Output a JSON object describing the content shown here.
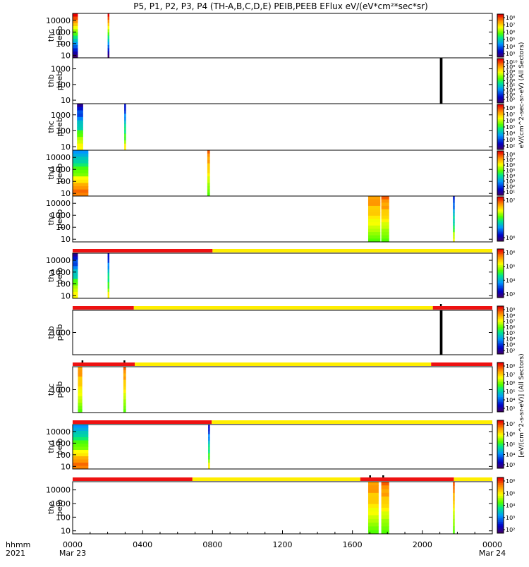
{
  "title": "P5, P1, P2, P3, P4 (TH-A,B,C,D,E) PEIB,PEEB EFlux eV/(eV*cm²*sec*sr)",
  "colorbar_label_top": "eV/(cm^2-sec-sr-eV) (All Sectors)",
  "colorbar_label_bottom": "[eV/(cm^2-s-sr-eV)] (All Sectors)",
  "x_axis": {
    "corner_label_1": "hhmm",
    "corner_label_2": "2021",
    "ticks": [
      {
        "hour": 0,
        "label": "0000",
        "sublabel": "Mar 23"
      },
      {
        "hour": 4,
        "label": "0400",
        "sublabel": ""
      },
      {
        "hour": 8,
        "label": "0800",
        "sublabel": ""
      },
      {
        "hour": 12,
        "label": "1200",
        "sublabel": ""
      },
      {
        "hour": 16,
        "label": "1600",
        "sublabel": ""
      },
      {
        "hour": 20,
        "label": "2000",
        "sublabel": ""
      },
      {
        "hour": 24,
        "label": "0000",
        "sublabel": "Mar 24"
      }
    ]
  },
  "chart_data": {
    "type": "heatmap",
    "title": "P5, P1, P2, P3, P4 (TH-A,B,C,D,E) PEIB,PEEB EFlux eV/(eV*cm²*sec*sr)",
    "x_range_hours": [
      0,
      24
    ],
    "x_start": "2021-03-23 00:00",
    "x_end": "2021-03-24 00:00",
    "y_scale": "log",
    "panels": [
      {
        "ylabel": [
          "thc",
          "peeb"
        ],
        "yticks": [
          "10000",
          "1000",
          "100",
          "10"
        ],
        "yrange": [
          6,
          40000
        ],
        "cbar_ticks": [
          "10⁸",
          "10⁷",
          "10⁶",
          "10⁵",
          "10⁴",
          "10³"
        ],
        "cbar_range_exp": [
          2,
          8.5
        ],
        "mode_bar": null,
        "marker_ticks": [],
        "segments": [
          {
            "t0": 0.0,
            "t1": 0.3,
            "style": "rainbow"
          },
          {
            "t0": 2.0,
            "t1": 2.1,
            "style": "rainbow"
          }
        ]
      },
      {
        "ylabel": [
          "thb",
          "peeb"
        ],
        "yticks": [
          "1000",
          "100",
          "10"
        ],
        "yrange": [
          6,
          5000
        ],
        "cbar_ticks": [
          "10¹⁰",
          "10⁹",
          "10⁸",
          "10⁷",
          "10⁶",
          "10⁵",
          "10⁴",
          "10³",
          "10²"
        ],
        "cbar_range_exp": [
          1.5,
          10.5
        ],
        "mode_bar": null,
        "marker_ticks": [],
        "segments": [
          {
            "t0": 21.0,
            "t1": 21.15,
            "style": "black"
          }
        ]
      },
      {
        "ylabel": [
          "thc",
          "peeb"
        ],
        "yticks": [
          "1000",
          "100",
          "10"
        ],
        "yrange": [
          6,
          5000
        ],
        "cbar_ticks": [
          "10⁸",
          "10⁷",
          "10⁶",
          "10⁵",
          "10⁴",
          "10³",
          "10²"
        ],
        "cbar_range_exp": [
          1.5,
          8.5
        ],
        "mode_bar": null,
        "marker_ticks": [],
        "segments": [
          {
            "t0": 0.25,
            "t1": 0.6,
            "style": "cool"
          },
          {
            "t0": 2.95,
            "t1": 3.05,
            "style": "cool"
          }
        ]
      },
      {
        "ylabel": [
          "thd",
          "peeb"
        ],
        "yticks": [
          "10000",
          "1000",
          "100",
          "10"
        ],
        "yrange": [
          6,
          40000
        ],
        "cbar_ticks": [
          "10⁸",
          "10⁷",
          "10⁶",
          "10⁵",
          "10⁴",
          "10³",
          "10²",
          "10¹"
        ],
        "cbar_range_exp": [
          0.5,
          8.5
        ],
        "mode_bar": null,
        "marker_ticks": [],
        "segments": [
          {
            "t0": 0.0,
            "t1": 0.9,
            "style": "mixed"
          },
          {
            "t0": 7.7,
            "t1": 7.85,
            "style": "warm"
          }
        ]
      },
      {
        "ylabel": [
          "the",
          "peeb"
        ],
        "yticks": [
          "10000",
          "1000",
          "100",
          "10"
        ],
        "yrange": [
          6,
          40000
        ],
        "cbar_ticks": [
          "10⁷",
          "10⁶"
        ],
        "cbar_range_exp": [
          5,
          8
        ],
        "mode_bar": null,
        "marker_ticks": [],
        "segments": [
          {
            "t0": 16.9,
            "t1": 17.6,
            "style": "warm"
          },
          {
            "t0": 17.65,
            "t1": 18.1,
            "style": "warm"
          },
          {
            "t0": 21.75,
            "t1": 21.85,
            "style": "cool"
          }
        ]
      },
      {
        "ylabel": [
          "tha",
          "peib"
        ],
        "yticks": [
          "10000",
          "1000",
          "100",
          "10"
        ],
        "yrange": [
          6,
          40000
        ],
        "cbar_ticks": [
          "10⁶",
          "10⁵",
          "10⁴",
          "10³"
        ],
        "cbar_range_exp": [
          2.5,
          6.5
        ],
        "mode_bar": [
          {
            "t0": 0,
            "t1": 8.0,
            "color": "#ee1111"
          },
          {
            "t0": 8.0,
            "t1": 24,
            "color": "#ffee00"
          }
        ],
        "marker_ticks": [],
        "segments": [
          {
            "t0": 0.0,
            "t1": 0.3,
            "style": "cool"
          },
          {
            "t0": 2.0,
            "t1": 2.1,
            "style": "cool"
          }
        ]
      },
      {
        "ylabel": [
          "thb",
          "peib"
        ],
        "yticks": [
          "1000"
        ],
        "yrange": [
          200,
          5000
        ],
        "cbar_ticks": [
          "10⁹",
          "10⁸",
          "10⁷",
          "10⁶",
          "10⁵",
          "10⁴",
          "10³",
          "10²"
        ],
        "cbar_range_exp": [
          1.5,
          9.5
        ],
        "mode_bar": [
          {
            "t0": 0,
            "t1": 3.5,
            "color": "#ee1111"
          },
          {
            "t0": 3.5,
            "t1": 20.6,
            "color": "#ffee00"
          },
          {
            "t0": 20.6,
            "t1": 24,
            "color": "#ee1111"
          }
        ],
        "marker_ticks": [
          {
            "t": 21.05
          }
        ],
        "segments": [
          {
            "t0": 21.0,
            "t1": 21.15,
            "style": "black"
          }
        ]
      },
      {
        "ylabel": [
          "thc",
          "peib"
        ],
        "yticks": [
          "1000"
        ],
        "yrange": [
          200,
          5000
        ],
        "cbar_ticks": [
          "10⁸",
          "10⁷",
          "10⁶",
          "10⁵",
          "10⁴",
          "10³"
        ],
        "cbar_range_exp": [
          2.5,
          8.5
        ],
        "mode_bar": [
          {
            "t0": 0,
            "t1": 3.55,
            "color": "#ee1111"
          },
          {
            "t0": 3.55,
            "t1": 20.5,
            "color": "#ffee00"
          },
          {
            "t0": 20.5,
            "t1": 24,
            "color": "#ee1111"
          }
        ],
        "marker_ticks": [
          {
            "t": 0.55
          },
          {
            "t": 2.95
          }
        ],
        "segments": [
          {
            "t0": 0.3,
            "t1": 0.55,
            "style": "warm"
          },
          {
            "t0": 2.9,
            "t1": 3.05,
            "style": "warm"
          }
        ]
      },
      {
        "ylabel": [
          "thd",
          "peib"
        ],
        "yticks": [
          "10000",
          "1000",
          "100",
          "10"
        ],
        "yrange": [
          6,
          40000
        ],
        "cbar_ticks": [
          "10⁷",
          "10⁶",
          "10⁵",
          "10⁴",
          "10³"
        ],
        "cbar_range_exp": [
          2.5,
          7.5
        ],
        "mode_bar": [
          {
            "t0": 0,
            "t1": 7.95,
            "color": "#ee1111"
          },
          {
            "t0": 7.95,
            "t1": 24,
            "color": "#ffee00"
          }
        ],
        "marker_ticks": [],
        "segments": [
          {
            "t0": 0.0,
            "t1": 0.9,
            "style": "mixed"
          },
          {
            "t0": 7.75,
            "t1": 7.85,
            "style": "cool"
          }
        ]
      },
      {
        "ylabel": [
          "the",
          "peib"
        ],
        "yticks": [
          "10000",
          "1000",
          "100",
          "10"
        ],
        "yrange": [
          6,
          40000
        ],
        "cbar_ticks": [
          "10⁶",
          "10⁵",
          "10⁴",
          "10³",
          "10²"
        ],
        "cbar_range_exp": [
          1.5,
          6.5
        ],
        "mode_bar": [
          {
            "t0": 0,
            "t1": 6.85,
            "color": "#ee1111"
          },
          {
            "t0": 6.85,
            "t1": 16.45,
            "color": "#ffee00"
          },
          {
            "t0": 16.45,
            "t1": 21.8,
            "color": "#ee1111"
          },
          {
            "t0": 21.8,
            "t1": 24,
            "color": "#ffee00"
          }
        ],
        "marker_ticks": [
          {
            "t": 17.0
          },
          {
            "t": 17.75
          }
        ],
        "segments": [
          {
            "t0": 16.9,
            "t1": 17.5,
            "style": "warm"
          },
          {
            "t0": 17.65,
            "t1": 18.1,
            "style": "warm"
          },
          {
            "t0": 21.75,
            "t1": 21.85,
            "style": "warm"
          }
        ]
      }
    ]
  }
}
